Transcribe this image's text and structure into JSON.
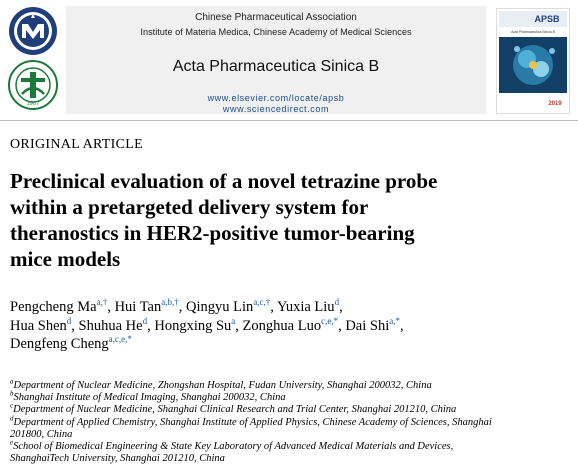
{
  "header": {
    "association": "Chinese Pharmaceutical Association",
    "institute": "Institute of Materia Medica, Chinese Academy of Medical Sciences",
    "journal": "Acta Pharmaceutica Sinica B",
    "url1": "www.elsevier.com/locate/apsb",
    "url2": "www.sciencedirect.com",
    "cover_title": "APSB",
    "cover_subtitle": "Acta Pharmaceutica Sinica B",
    "cover_year": "2019",
    "logo2_year": "1907"
  },
  "article": {
    "type": "ORIGINAL ARTICLE",
    "title_lines": [
      "Preclinical evaluation of a novel tetrazine probe",
      "within a pretargeted delivery system for",
      "theranostics in HER2-positive tumor-bearing",
      "mice models"
    ],
    "authors": [
      {
        "name": "Pengcheng Ma",
        "sup": "a,†",
        "sep": ", "
      },
      {
        "name": "Hui Tan",
        "sup": "a,b,†",
        "sep": ", "
      },
      {
        "name": "Qingyu Lin",
        "sup": "a,c,†",
        "sep": ", "
      },
      {
        "name": "Yuxia Liu",
        "sup": "d",
        "sep": ","
      },
      {
        "name": "Hua Shen",
        "sup": "d",
        "sep": ", "
      },
      {
        "name": "Shuhua He",
        "sup": "d",
        "sep": ", "
      },
      {
        "name": "Hongxing Su",
        "sup": "a",
        "sep": ", "
      },
      {
        "name": "Zonghua Luo",
        "sup": "c,e,*",
        "sep": ", "
      },
      {
        "name": "Dai Shi",
        "sup": "a,*",
        "sep": ","
      },
      {
        "name": "Dengfeng Cheng",
        "sup": "a,c,e,*",
        "sep": ""
      }
    ],
    "affiliations": [
      {
        "sup": "a",
        "lines": [
          "Department of Nuclear Medicine, Zhongshan Hospital, Fudan University, Shanghai 200032, China"
        ]
      },
      {
        "sup": "b",
        "lines": [
          "Shanghai Institute of Medical Imaging, Shanghai 200032, China"
        ]
      },
      {
        "sup": "c",
        "lines": [
          "Department of Nuclear Medicine, Shanghai Clinical Research and Trial Center, Shanghai 201210, China"
        ]
      },
      {
        "sup": "d",
        "lines": [
          "Department of Applied Chemistry, Shanghai Institute of Applied Physics, Chinese Academy of Sciences, Shanghai",
          "201800, China"
        ]
      },
      {
        "sup": "e",
        "lines": [
          "School of Biomedical Engineering & State Key Laboratory of Advanced Medical Materials and Devices,",
          "ShanghaiTech University, Shanghai 201210, China"
        ]
      }
    ]
  },
  "colors": {
    "link_blue": "#1a5aa6",
    "logo_navy": "#1f3f7a",
    "logo_green": "#1b7a3a",
    "header_bg": "#f0f0f0"
  }
}
